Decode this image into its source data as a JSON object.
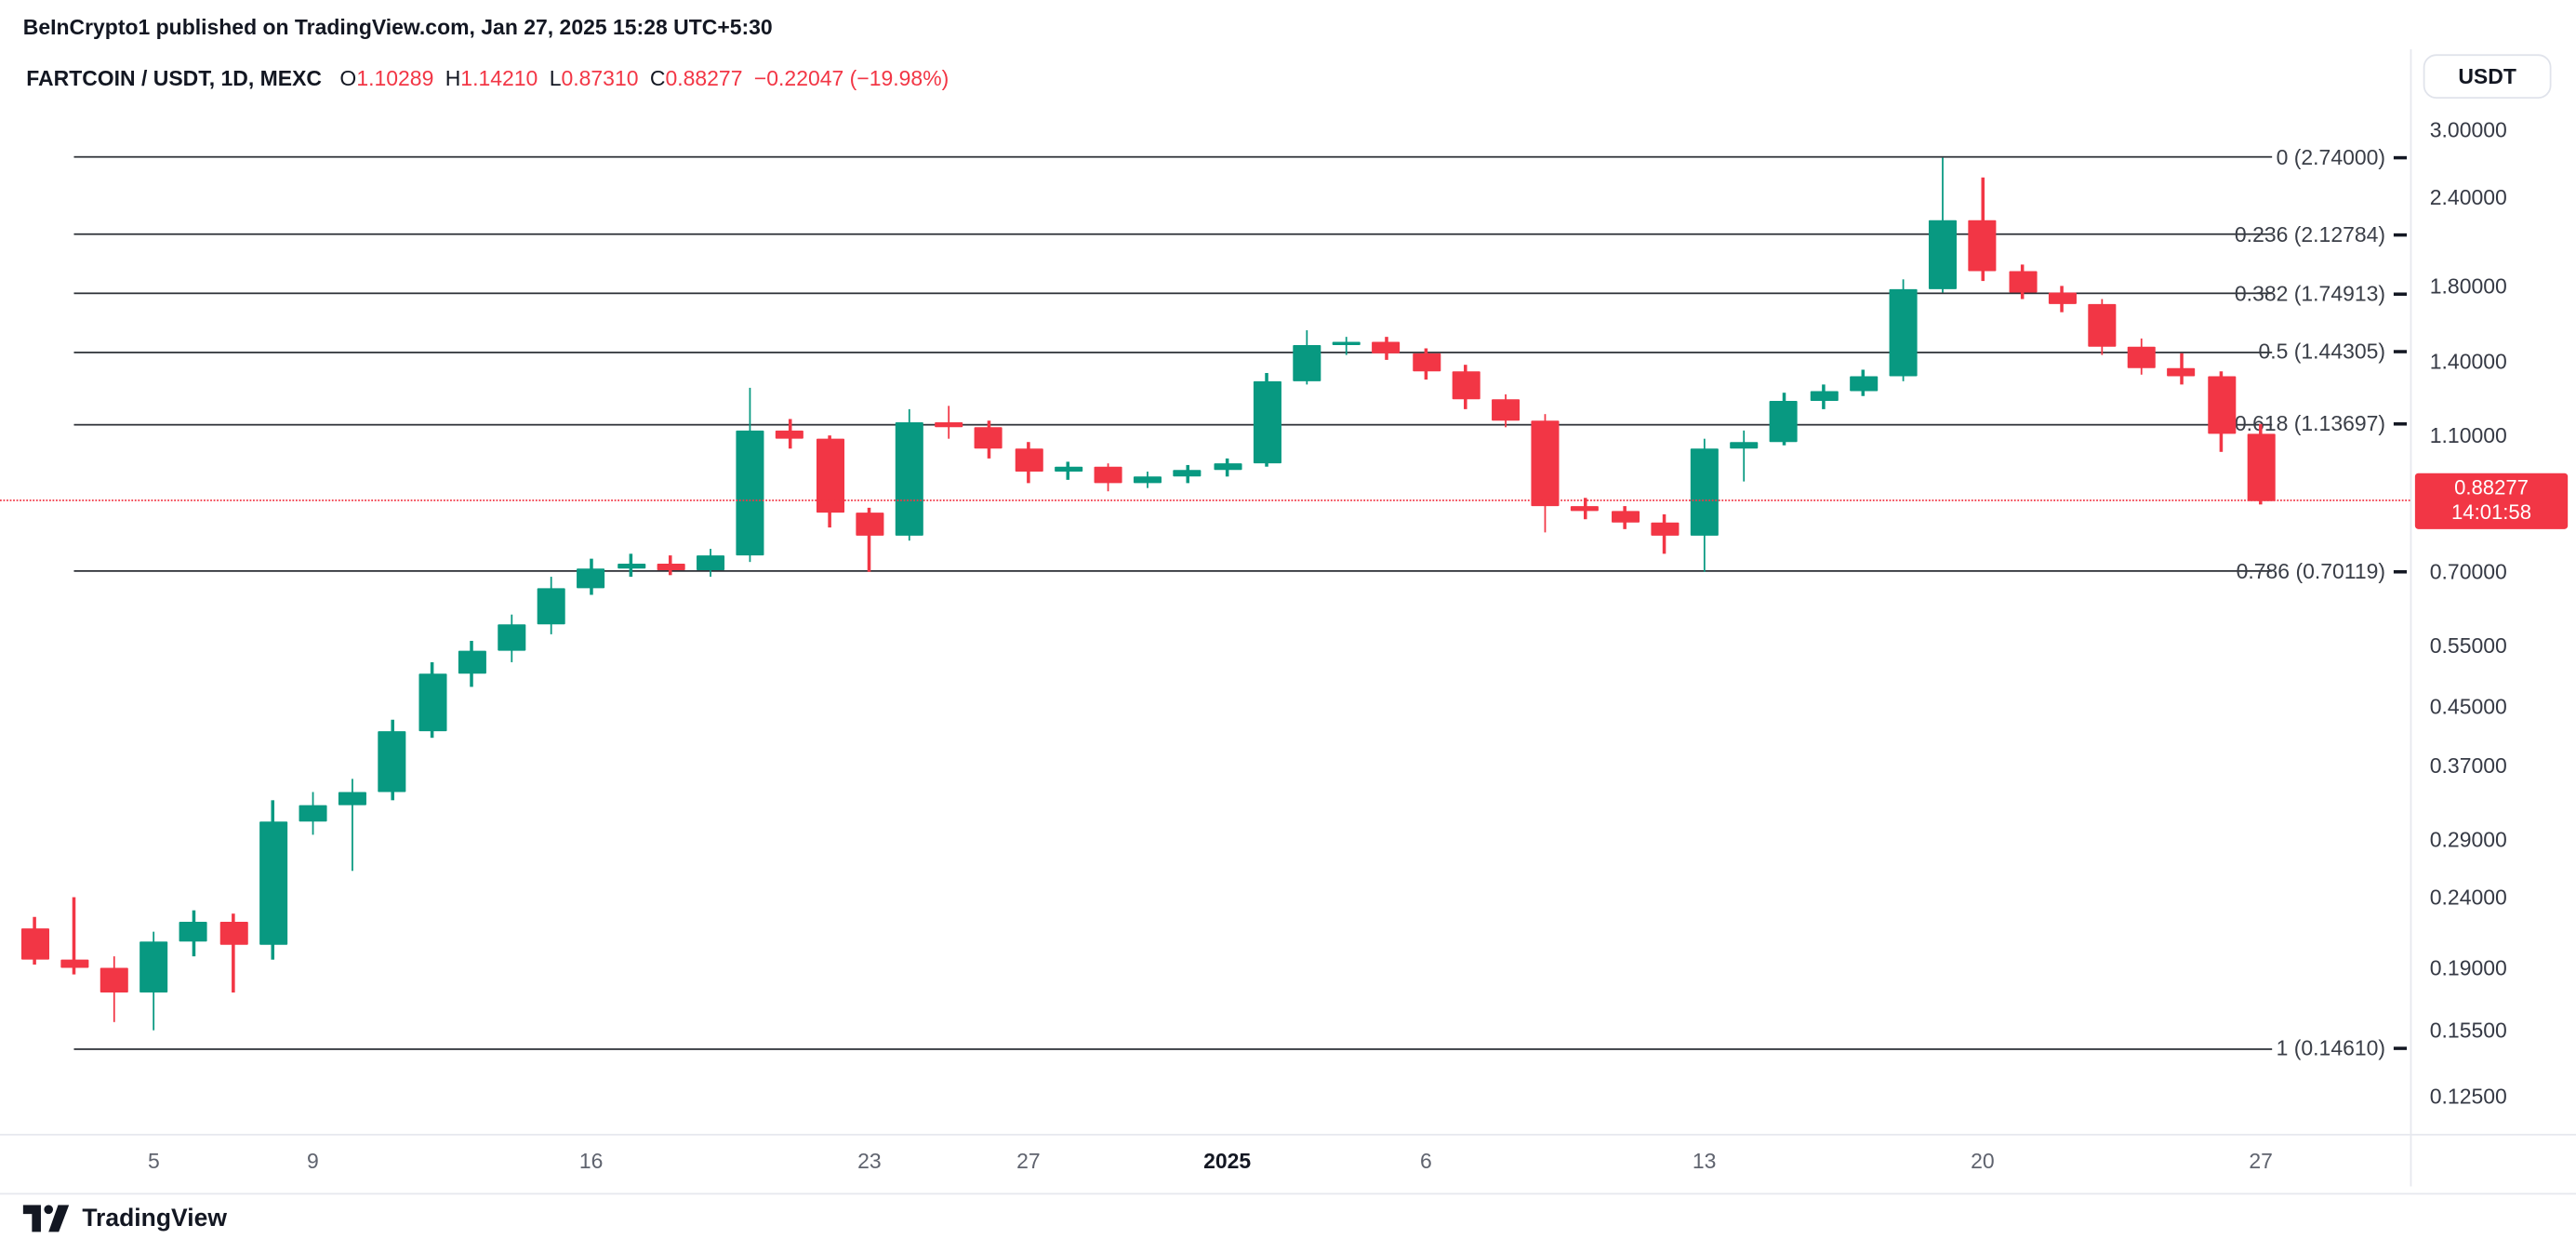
{
  "header": {
    "attribution": "BeInCrypto1 published on TradingView.com, Jan 27, 2025 15:28 UTC+5:30",
    "legend": {
      "symbol": "FARTCOIN / USDT, 1D, MEXC",
      "o_label": "O",
      "o_value": "1.10289",
      "h_label": "H",
      "h_value": "1.14210",
      "l_label": "L",
      "l_value": "0.87310",
      "c_label": "C",
      "c_value": "0.88277",
      "change": "−0.22047 (−19.98%)"
    },
    "currency_button": "USDT"
  },
  "colors": {
    "up": "#089981",
    "down": "#f23645",
    "accent_red": "#f23645"
  },
  "footer": {
    "brand": "TradingView"
  },
  "chart_data": {
    "type": "candlestick",
    "title": "FARTCOIN / USDT, 1D, MEXC",
    "scale": "log",
    "ylim": [
      0.115,
      3.1
    ],
    "legend_position": "top-left",
    "grid": false,
    "y_axis_ticks": [
      {
        "value": 3.0,
        "label": "3.00000"
      },
      {
        "value": 2.4,
        "label": "2.40000"
      },
      {
        "value": 1.8,
        "label": "1.80000"
      },
      {
        "value": 1.4,
        "label": "1.40000"
      },
      {
        "value": 1.1,
        "label": "1.10000"
      },
      {
        "value": 0.7,
        "label": "0.70000"
      },
      {
        "value": 0.55,
        "label": "0.55000"
      },
      {
        "value": 0.45,
        "label": "0.45000"
      },
      {
        "value": 0.37,
        "label": "0.37000"
      },
      {
        "value": 0.29,
        "label": "0.29000"
      },
      {
        "value": 0.24,
        "label": "0.24000"
      },
      {
        "value": 0.19,
        "label": "0.19000"
      },
      {
        "value": 0.155,
        "label": "0.15500"
      },
      {
        "value": 0.125,
        "label": "0.12500"
      }
    ],
    "x_axis_ticks": [
      {
        "label": "5",
        "i": 3
      },
      {
        "label": "9",
        "i": 7
      },
      {
        "label": "16",
        "i": 14
      },
      {
        "label": "23",
        "i": 21
      },
      {
        "label": "27",
        "i": 25
      },
      {
        "label": "2025",
        "i": 30,
        "bold": true
      },
      {
        "label": "6",
        "i": 35
      },
      {
        "label": "13",
        "i": 42
      },
      {
        "label": "20",
        "i": 49
      },
      {
        "label": "27",
        "i": 56
      }
    ],
    "fib_levels": [
      {
        "label": "0 (2.74000)",
        "value": 2.74
      },
      {
        "label": "0.236 (2.12784)",
        "value": 2.12784
      },
      {
        "label": "0.382 (1.74913)",
        "value": 1.74913
      },
      {
        "label": "0.5 (1.44305)",
        "value": 1.44305
      },
      {
        "label": "0.618 (1.13697)",
        "value": 1.13697
      },
      {
        "label": "0.786 (0.70119)",
        "value": 0.70119
      },
      {
        "label": "1 (0.14610)",
        "value": 0.1461
      }
    ],
    "last_price": {
      "value": 0.88277,
      "label": "0.88277",
      "countdown": "14:01:58"
    },
    "candles": [
      [
        "Dec 2",
        0.217,
        0.225,
        0.193,
        0.196
      ],
      [
        "Dec 3",
        0.196,
        0.24,
        0.186,
        0.19
      ],
      [
        "Dec 4",
        0.19,
        0.198,
        0.159,
        0.176
      ],
      [
        "Dec 5",
        0.176,
        0.214,
        0.155,
        0.208
      ],
      [
        "Dec 6",
        0.208,
        0.23,
        0.198,
        0.222
      ],
      [
        "Dec 7",
        0.222,
        0.228,
        0.176,
        0.205
      ],
      [
        "Dec 8",
        0.205,
        0.33,
        0.196,
        0.308
      ],
      [
        "Dec 9",
        0.308,
        0.34,
        0.295,
        0.325
      ],
      [
        "Dec 10",
        0.325,
        0.355,
        0.262,
        0.34
      ],
      [
        "Dec 11",
        0.34,
        0.43,
        0.33,
        0.415
      ],
      [
        "Dec 12",
        0.415,
        0.52,
        0.405,
        0.5
      ],
      [
        "Dec 13",
        0.5,
        0.56,
        0.48,
        0.54
      ],
      [
        "Dec 14",
        0.54,
        0.61,
        0.52,
        0.59
      ],
      [
        "Dec 15",
        0.59,
        0.69,
        0.57,
        0.665
      ],
      [
        "Dec 16",
        0.665,
        0.73,
        0.65,
        0.71
      ],
      [
        "Dec 17",
        0.71,
        0.745,
        0.69,
        0.722
      ],
      [
        "Dec 18",
        0.722,
        0.74,
        0.695,
        0.705
      ],
      [
        "Dec 19",
        0.705,
        0.755,
        0.69,
        0.74
      ],
      [
        "Dec 20",
        0.74,
        1.285,
        0.725,
        1.115
      ],
      [
        "Dec 21",
        1.115,
        1.16,
        1.05,
        1.085
      ],
      [
        "Dec 22",
        1.085,
        1.1,
        0.81,
        0.85
      ],
      [
        "Dec 23",
        0.85,
        0.865,
        0.7,
        0.79
      ],
      [
        "Dec 24",
        0.79,
        1.195,
        0.775,
        1.145
      ],
      [
        "Dec 25",
        1.145,
        1.21,
        1.085,
        1.13
      ],
      [
        "Dec 26",
        1.13,
        1.15,
        1.02,
        1.05
      ],
      [
        "Dec 27",
        1.05,
        1.075,
        0.94,
        0.975
      ],
      [
        "Dec 28",
        0.975,
        1.005,
        0.95,
        0.99
      ],
      [
        "Dec 29",
        0.99,
        1.0,
        0.915,
        0.94
      ],
      [
        "Dec 30",
        0.94,
        0.975,
        0.925,
        0.96
      ],
      [
        "Dec 31",
        0.96,
        0.995,
        0.94,
        0.98
      ],
      [
        "Jan 1",
        0.98,
        1.015,
        0.96,
        1.0
      ],
      [
        "Jan 2",
        1.0,
        1.35,
        0.99,
        1.31
      ],
      [
        "Jan 3",
        1.31,
        1.555,
        1.3,
        1.475
      ],
      [
        "Jan 4",
        1.475,
        1.52,
        1.43,
        1.495
      ],
      [
        "Jan 5",
        1.495,
        1.515,
        1.405,
        1.435
      ],
      [
        "Jan 6",
        1.435,
        1.465,
        1.32,
        1.355
      ],
      [
        "Jan 7",
        1.355,
        1.385,
        1.2,
        1.235
      ],
      [
        "Jan 8",
        1.235,
        1.255,
        1.13,
        1.155
      ],
      [
        "Jan 9",
        1.155,
        1.175,
        0.8,
        0.87
      ],
      [
        "Jan 10",
        0.87,
        0.895,
        0.835,
        0.855
      ],
      [
        "Jan 11",
        0.855,
        0.87,
        0.805,
        0.825
      ],
      [
        "Jan 12",
        0.825,
        0.845,
        0.745,
        0.79
      ],
      [
        "Jan 13",
        0.79,
        1.085,
        0.7,
        1.05
      ],
      [
        "Jan 14",
        1.05,
        1.115,
        0.945,
        1.075
      ],
      [
        "Jan 15",
        1.075,
        1.26,
        1.06,
        1.23
      ],
      [
        "Jan 16",
        1.23,
        1.3,
        1.2,
        1.27
      ],
      [
        "Jan 17",
        1.27,
        1.36,
        1.25,
        1.33
      ],
      [
        "Jan 18",
        1.33,
        1.83,
        1.31,
        1.78
      ],
      [
        "Jan 19",
        1.78,
        2.74,
        1.76,
        2.23
      ],
      [
        "Jan 20",
        2.23,
        2.56,
        1.82,
        1.88
      ],
      [
        "Jan 21",
        1.88,
        1.93,
        1.72,
        1.76
      ],
      [
        "Jan 22",
        1.76,
        1.8,
        1.65,
        1.69
      ],
      [
        "Jan 23",
        1.69,
        1.72,
        1.43,
        1.47
      ],
      [
        "Jan 24",
        1.47,
        1.51,
        1.34,
        1.37
      ],
      [
        "Jan 25",
        1.37,
        1.44,
        1.3,
        1.33
      ],
      [
        "Jan 26",
        1.33,
        1.355,
        1.04,
        1.105
      ],
      [
        "Jan 27",
        1.10289,
        1.1421,
        0.8731,
        0.88277
      ]
    ]
  }
}
